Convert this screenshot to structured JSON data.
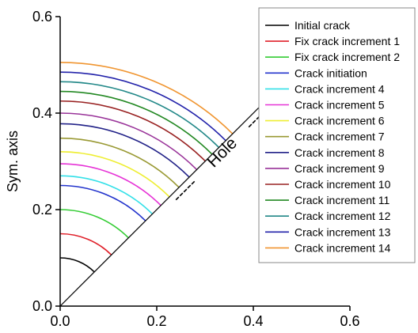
{
  "chart_data": {
    "type": "line",
    "title": "",
    "xlabel": "",
    "ylabel": "Sym. axis",
    "xlim": [
      0,
      0.6
    ],
    "ylim": [
      0,
      0.6
    ],
    "xticks": [
      "0.0",
      "0.2",
      "0.4",
      "0.6"
    ],
    "yticks": [
      "0.0",
      "0.2",
      "0.4",
      "0.6"
    ],
    "grid": false,
    "legend_position": "top-right",
    "annotation": {
      "text": "Hole",
      "dashes": "-----"
    },
    "series": [
      {
        "name": "Initial crack",
        "radius": 0.1,
        "color": "#000000"
      },
      {
        "name": "Fix crack increment 1",
        "radius": 0.15,
        "color": "#e0202a"
      },
      {
        "name": "Fix crack increment 2",
        "radius": 0.2,
        "color": "#33cc33"
      },
      {
        "name": "Crack initiation",
        "radius": 0.25,
        "color": "#2233cc"
      },
      {
        "name": "Crack increment 4",
        "radius": 0.27,
        "color": "#33e0e8"
      },
      {
        "name": "Crack increment 5",
        "radius": 0.295,
        "color": "#e633d6"
      },
      {
        "name": "Crack increment 6",
        "radius": 0.32,
        "color": "#eeee33"
      },
      {
        "name": "Crack increment 7",
        "radius": 0.348,
        "color": "#999933"
      },
      {
        "name": "Crack increment 8",
        "radius": 0.378,
        "color": "#222288"
      },
      {
        "name": "Crack increment 9",
        "radius": 0.4,
        "color": "#993399"
      },
      {
        "name": "Crack increment 10",
        "radius": 0.425,
        "color": "#992222"
      },
      {
        "name": "Crack increment 11",
        "radius": 0.445,
        "color": "#228822"
      },
      {
        "name": "Crack increment 12",
        "radius": 0.465,
        "color": "#228888"
      },
      {
        "name": "Crack increment 13",
        "radius": 0.485,
        "color": "#2222aa"
      },
      {
        "name": "Crack increment 14",
        "radius": 0.505,
        "color": "#f09530"
      }
    ]
  }
}
